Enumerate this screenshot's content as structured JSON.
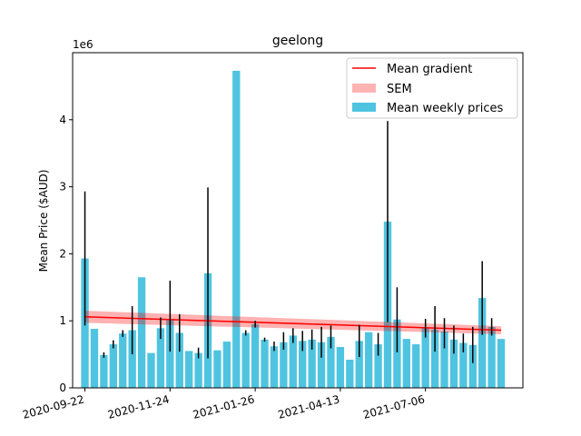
{
  "chart_data": {
    "type": "bar",
    "title": "geelong",
    "xlabel": "",
    "ylabel": "Mean Price ($AUD)",
    "y_scale_label": "1e6",
    "ylim": [
      0,
      5000000
    ],
    "y_ticks": [
      0,
      1000000,
      2000000,
      3000000,
      4000000
    ],
    "y_tick_labels": [
      "0",
      "1",
      "2",
      "3",
      "4"
    ],
    "x_tick_labels": [
      "2020-09-22",
      "2020-11-24",
      "2021-01-26",
      "2021-04-13",
      "2021-07-06"
    ],
    "x_tick_positions": [
      0,
      9,
      18,
      27,
      36
    ],
    "x_range": [
      -1.3,
      46.3
    ],
    "legend_position": "upper right",
    "legend": {
      "gradient": "Mean gradient",
      "sem": "SEM",
      "bars": "Mean weekly prices"
    },
    "colors": {
      "bars": "#4fc4e0",
      "gradient": "#ff0000",
      "sem": "#ffb3b3",
      "errorbar": "#000000"
    },
    "series": [
      {
        "name": "Mean weekly prices",
        "values": [
          1930000,
          880000,
          490000,
          650000,
          810000,
          860000,
          1650000,
          520000,
          890000,
          1020000,
          820000,
          550000,
          520000,
          1710000,
          560000,
          690000,
          4730000,
          820000,
          950000,
          720000,
          620000,
          680000,
          780000,
          700000,
          720000,
          680000,
          760000,
          610000,
          420000,
          700000,
          830000,
          650000,
          2480000,
          1020000,
          730000,
          650000,
          890000,
          870000,
          840000,
          720000,
          670000,
          640000,
          1340000,
          910000,
          730000
        ],
        "error_low": [
          930000,
          880000,
          450000,
          590000,
          760000,
          500000,
          1650000,
          520000,
          730000,
          540000,
          540000,
          550000,
          440000,
          440000,
          560000,
          690000,
          4730000,
          780000,
          900000,
          690000,
          550000,
          570000,
          670000,
          550000,
          570000,
          450000,
          590000,
          610000,
          420000,
          460000,
          830000,
          480000,
          980000,
          530000,
          730000,
          650000,
          750000,
          540000,
          590000,
          510000,
          530000,
          370000,
          790000,
          780000,
          730000
        ],
        "error_high": [
          2930000,
          880000,
          530000,
          710000,
          860000,
          1220000,
          1650000,
          520000,
          1050000,
          1600000,
          1100000,
          550000,
          600000,
          2990000,
          560000,
          690000,
          4730000,
          860000,
          1000000,
          750000,
          690000,
          830000,
          890000,
          850000,
          870000,
          910000,
          930000,
          610000,
          420000,
          940000,
          830000,
          820000,
          3980000,
          1500000,
          730000,
          650000,
          1030000,
          1220000,
          1040000,
          930000,
          810000,
          910000,
          1890000,
          1040000,
          730000
        ]
      }
    ],
    "trend": {
      "name": "Mean gradient",
      "start_value": 1060000,
      "end_value": 860000,
      "sem_start_low": 970000,
      "sem_start_high": 1150000,
      "sem_end_low": 800000,
      "sem_end_high": 920000
    }
  }
}
